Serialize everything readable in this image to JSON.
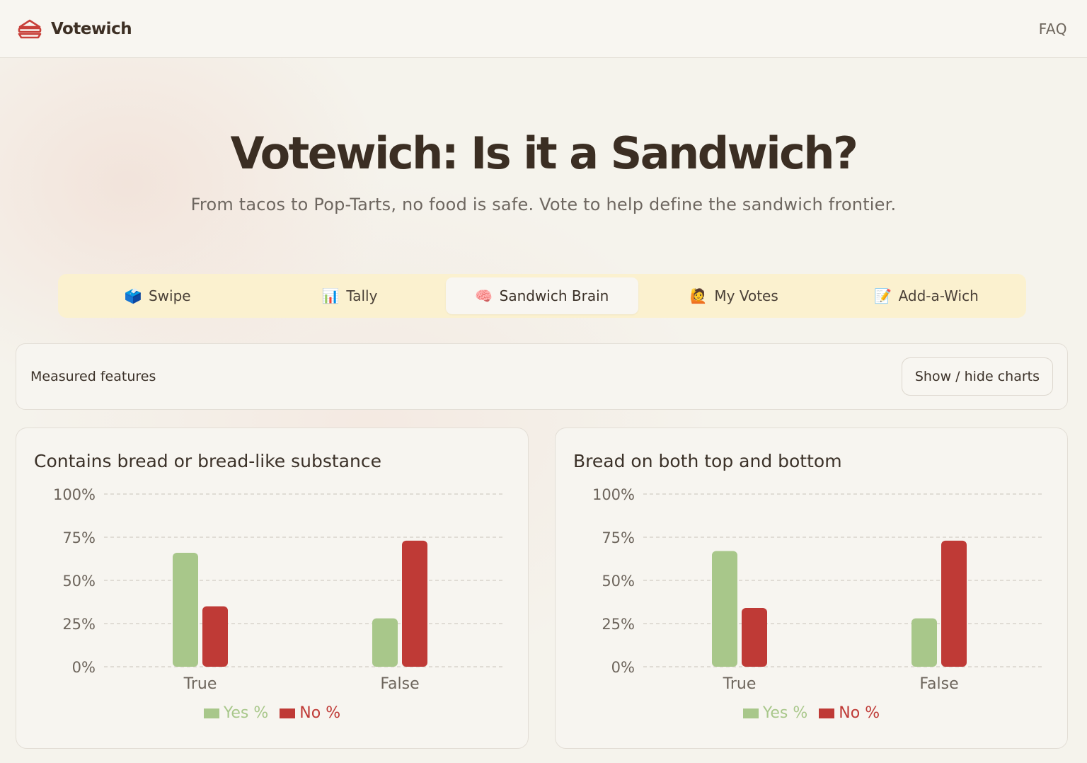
{
  "app": {
    "brand": "Votewich",
    "faq_label": "FAQ"
  },
  "hero": {
    "title": "Votewich: Is it a Sandwich?",
    "subtitle": "From tacos to Pop-Tarts, no food is safe. Vote to help define the sandwich frontier."
  },
  "tabs": [
    {
      "label": "Swipe",
      "icon": "ballot-box-icon",
      "glyph": "🗳️",
      "active": false
    },
    {
      "label": "Tally",
      "icon": "bar-chart-icon",
      "glyph": "📊",
      "active": false
    },
    {
      "label": "Sandwich Brain",
      "icon": "brain-icon",
      "glyph": "🧠",
      "active": true
    },
    {
      "label": "My Votes",
      "icon": "person-raising-hand-icon",
      "glyph": "🙋",
      "active": false
    },
    {
      "label": "Add-a-Wich",
      "icon": "memo-icon",
      "glyph": "📝",
      "active": false
    }
  ],
  "features": {
    "label": "Measured features",
    "toggle_label": "Show / hide charts"
  },
  "colors": {
    "yes": "#a8c78a",
    "no": "#bf3a36",
    "grid": "#d9d4cc"
  },
  "chart_data": [
    {
      "type": "bar",
      "title": "Contains bread or bread-like substance",
      "categories": [
        "True",
        "False"
      ],
      "series": [
        {
          "name": "Yes %",
          "values": [
            66,
            28
          ]
        },
        {
          "name": "No %",
          "values": [
            35,
            73
          ]
        }
      ],
      "ylim": [
        0,
        100
      ],
      "yticks": [
        "0%",
        "25%",
        "50%",
        "75%",
        "100%"
      ],
      "grid": true,
      "legend": "bottom-center"
    },
    {
      "type": "bar",
      "title": "Bread on both top and bottom",
      "categories": [
        "True",
        "False"
      ],
      "series": [
        {
          "name": "Yes %",
          "values": [
            67,
            28
          ]
        },
        {
          "name": "No %",
          "values": [
            34,
            73
          ]
        }
      ],
      "ylim": [
        0,
        100
      ],
      "yticks": [
        "0%",
        "25%",
        "50%",
        "75%",
        "100%"
      ],
      "grid": true,
      "legend": "bottom-center"
    }
  ]
}
